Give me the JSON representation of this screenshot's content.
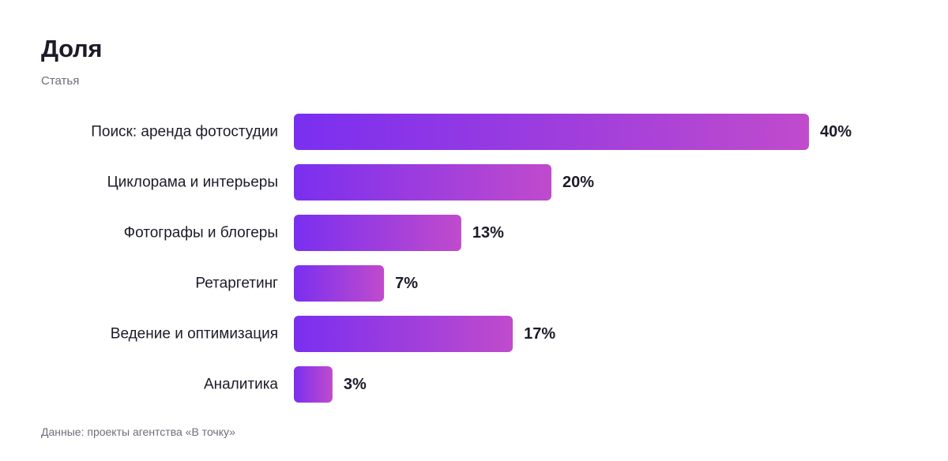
{
  "header": {
    "title": "Доля",
    "subtitle": "Статья"
  },
  "footer": {
    "source": "Данные: проекты агентства «В точку»"
  },
  "colors": {
    "bar_gradient_start": "#7a2ff0",
    "bar_gradient_end": "#c04bcc"
  },
  "chart_data": {
    "type": "bar",
    "orientation": "horizontal",
    "title": "Доля",
    "subtitle": "Статья",
    "categories": [
      "Поиск: аренда фотостудии",
      "Циклорама и интерьеры",
      "Фотографы и блогеры",
      "Ретаргетинг",
      "Ведение и оптимизация",
      "Аналитика"
    ],
    "values": [
      40,
      20,
      13,
      7,
      17,
      3
    ],
    "value_labels": [
      "40%",
      "20%",
      "13%",
      "7%",
      "17%",
      "3%"
    ],
    "unit": "%",
    "xlim": [
      0,
      40
    ],
    "grid": false,
    "legend": "none"
  }
}
